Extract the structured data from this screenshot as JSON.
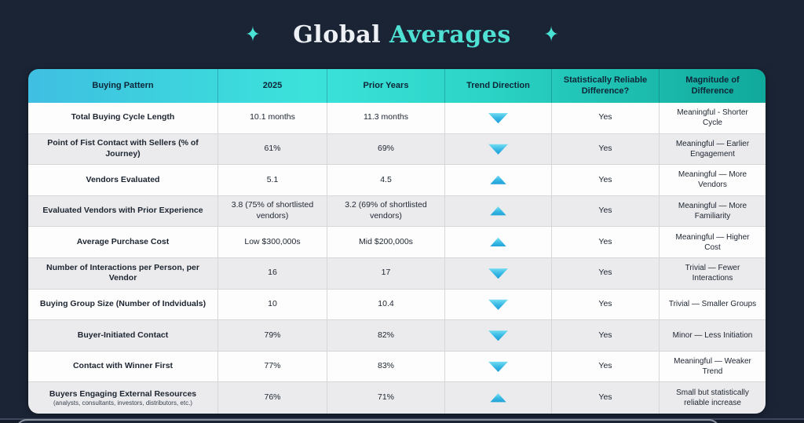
{
  "title": {
    "prefix": "Global",
    "highlight": "Averages",
    "sparkle": "✦"
  },
  "colors": {
    "background": "#1b2435",
    "accent_teal": "#49e3d3",
    "header_gradient_left": "#3fbfe2",
    "header_gradient_mid": "#3be2da",
    "header_gradient_right": "#10a99b",
    "row_alt": "#ebebed",
    "trend_icon_top": "#7ce2f4",
    "trend_icon_bottom": "#1f9fd6"
  },
  "chart_data": {
    "type": "table",
    "title": "Global Averages",
    "columns": [
      "Buying Pattern",
      "2025",
      "Prior Years",
      "Trend Direction",
      "Statistically Reliable Difference?",
      "Magnitude of Difference"
    ],
    "rows": [
      {
        "pattern": "Total Buying Cycle Length",
        "sub": "",
        "y2025": "10.1 months",
        "prior": "11.3 months",
        "trend": "down",
        "reliable": "Yes",
        "magnitude": "Meaningful - Shorter Cycle"
      },
      {
        "pattern": "Point of Fist Contact with Sellers (% of Journey)",
        "sub": "",
        "y2025": "61%",
        "prior": "69%",
        "trend": "down",
        "reliable": "Yes",
        "magnitude": "Meaningful — Earlier Engagement"
      },
      {
        "pattern": "Vendors Evaluated",
        "sub": "",
        "y2025": "5.1",
        "prior": "4.5",
        "trend": "up",
        "reliable": "Yes",
        "magnitude": "Meaningful — More Vendors"
      },
      {
        "pattern": "Evaluated Vendors with Prior Experience",
        "sub": "",
        "y2025": "3.8 (75% of shortlisted vendors)",
        "prior": "3.2 (69% of shortlisted vendors)",
        "trend": "up",
        "reliable": "Yes",
        "magnitude": "Meaningful — More Familiarity"
      },
      {
        "pattern": "Average Purchase Cost",
        "sub": "",
        "y2025": "Low $300,000s",
        "prior": "Mid $200,000s",
        "trend": "up",
        "reliable": "Yes",
        "magnitude": "Meaningful — Higher Cost"
      },
      {
        "pattern": "Number of Interactions per Person, per Vendor",
        "sub": "",
        "y2025": "16",
        "prior": "17",
        "trend": "down",
        "reliable": "Yes",
        "magnitude": "Trivial — Fewer Interactions"
      },
      {
        "pattern": "Buying Group Size (Number of Indviduals)",
        "sub": "",
        "y2025": "10",
        "prior": "10.4",
        "trend": "down",
        "reliable": "Yes",
        "magnitude": "Trivial — Smaller Groups"
      },
      {
        "pattern": "Buyer-Initiated Contact",
        "sub": "",
        "y2025": "79%",
        "prior": "82%",
        "trend": "down",
        "reliable": "Yes",
        "magnitude": "Minor — Less Initiation"
      },
      {
        "pattern": "Contact with Winner First",
        "sub": "",
        "y2025": "77%",
        "prior": "83%",
        "trend": "down",
        "reliable": "Yes",
        "magnitude": "Meaningful — Weaker Trend"
      },
      {
        "pattern": "Buyers Engaging External Resources",
        "sub": "(analysts, consultants, investors, distributors, etc.)",
        "y2025": "76%",
        "prior": "71%",
        "trend": "up",
        "reliable": "Yes",
        "magnitude": "Small but statistically reliable increase"
      }
    ]
  }
}
